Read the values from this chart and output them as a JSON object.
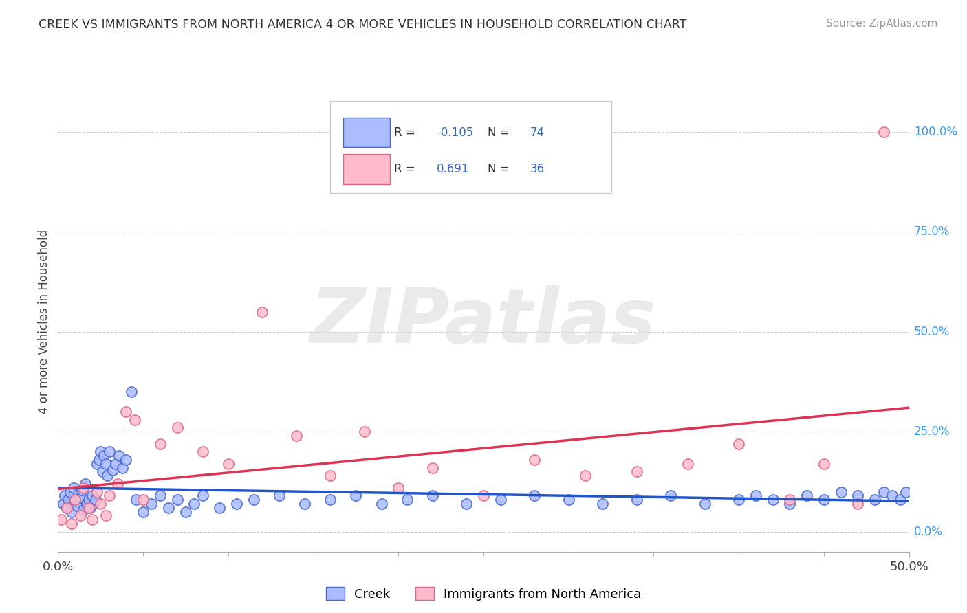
{
  "title": "CREEK VS IMMIGRANTS FROM NORTH AMERICA 4 OR MORE VEHICLES IN HOUSEHOLD CORRELATION CHART",
  "source": "Source: ZipAtlas.com",
  "ylabel": "4 or more Vehicles in Household",
  "xlim": [
    0.0,
    50.0
  ],
  "ylim": [
    -5.0,
    110.0
  ],
  "y_ticks_right": [
    0.0,
    25.0,
    50.0,
    75.0,
    100.0
  ],
  "y_tick_labels_right": [
    "0.0%",
    "25.0%",
    "50.0%",
    "75.0%",
    "100.0%"
  ],
  "creek_color": "#aabbff",
  "creek_edge_color": "#4466cc",
  "immigrant_color": "#ffbbcc",
  "immigrant_edge_color": "#dd6688",
  "creek_line_color": "#2255cc",
  "immigrant_line_color": "#dd3355",
  "creek_R": -0.105,
  "creek_N": 74,
  "immigrant_R": 0.691,
  "immigrant_N": 36,
  "watermark": "ZIPatlas",
  "creek_x": [
    0.3,
    0.4,
    0.5,
    0.6,
    0.7,
    0.8,
    0.9,
    1.0,
    1.1,
    1.2,
    1.3,
    1.4,
    1.5,
    1.6,
    1.7,
    1.8,
    1.9,
    2.0,
    2.1,
    2.2,
    2.3,
    2.4,
    2.5,
    2.6,
    2.7,
    2.8,
    2.9,
    3.0,
    3.2,
    3.4,
    3.6,
    3.8,
    4.0,
    4.3,
    4.6,
    5.0,
    5.5,
    6.0,
    6.5,
    7.0,
    7.5,
    8.0,
    8.5,
    9.5,
    10.5,
    11.5,
    13.0,
    14.5,
    16.0,
    17.5,
    19.0,
    20.5,
    22.0,
    24.0,
    26.0,
    28.0,
    30.0,
    32.0,
    34.0,
    36.0,
    38.0,
    40.0,
    41.0,
    42.0,
    43.0,
    44.0,
    45.0,
    46.0,
    47.0,
    48.0,
    48.5,
    49.0,
    49.5,
    49.8
  ],
  "creek_y": [
    7.0,
    9.0,
    6.0,
    8.0,
    10.0,
    5.0,
    11.0,
    7.5,
    6.5,
    9.5,
    8.5,
    10.5,
    5.5,
    12.0,
    7.0,
    8.0,
    6.0,
    9.0,
    7.0,
    8.0,
    17.0,
    18.0,
    20.0,
    15.0,
    19.0,
    17.0,
    14.0,
    20.0,
    15.5,
    17.0,
    19.0,
    16.0,
    18.0,
    35.0,
    8.0,
    5.0,
    7.0,
    9.0,
    6.0,
    8.0,
    5.0,
    7.0,
    9.0,
    6.0,
    7.0,
    8.0,
    9.0,
    7.0,
    8.0,
    9.0,
    7.0,
    8.0,
    9.0,
    7.0,
    8.0,
    9.0,
    8.0,
    7.0,
    8.0,
    9.0,
    7.0,
    8.0,
    9.0,
    8.0,
    7.0,
    9.0,
    8.0,
    10.0,
    9.0,
    8.0,
    10.0,
    9.0,
    8.0,
    10.0
  ],
  "immigrant_x": [
    0.2,
    0.5,
    0.8,
    1.0,
    1.3,
    1.5,
    1.8,
    2.0,
    2.3,
    2.5,
    2.8,
    3.0,
    3.5,
    4.0,
    4.5,
    5.0,
    6.0,
    7.0,
    8.5,
    10.0,
    12.0,
    14.0,
    16.0,
    18.0,
    20.0,
    22.0,
    25.0,
    28.0,
    31.0,
    34.0,
    37.0,
    40.0,
    43.0,
    45.0,
    47.0,
    48.5
  ],
  "immigrant_y": [
    3.0,
    6.0,
    2.0,
    8.0,
    4.0,
    11.0,
    6.0,
    3.0,
    10.0,
    7.0,
    4.0,
    9.0,
    12.0,
    30.0,
    28.0,
    8.0,
    22.0,
    26.0,
    20.0,
    17.0,
    55.0,
    24.0,
    14.0,
    25.0,
    11.0,
    16.0,
    9.0,
    18.0,
    14.0,
    15.0,
    17.0,
    22.0,
    8.0,
    17.0,
    7.0,
    100.0
  ]
}
